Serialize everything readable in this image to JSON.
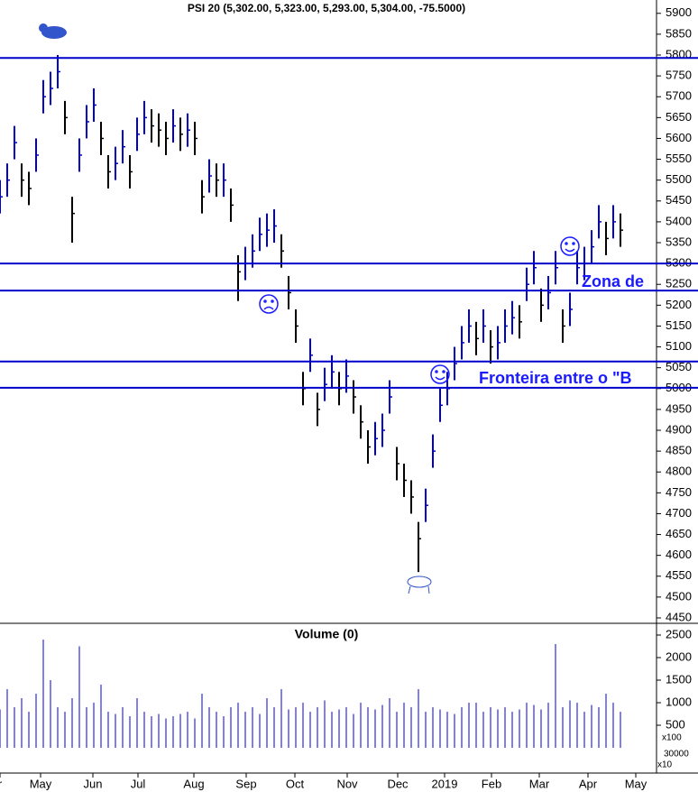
{
  "chart_data": {
    "type": "ohlc",
    "title": "PSI 20 (5,302.00, 5,323.00, 5,293.00, 5,304.00, -75.5000)",
    "volume_title": "Volume (0)",
    "volume_unit_label": "x100",
    "extra_labels": [
      "30000",
      "x10"
    ],
    "annotations": [
      "Zona de",
      "Fronteira entre o \"B"
    ],
    "up_color": "#0000cc",
    "down_color": "#000000",
    "line_color": "#0000cc",
    "hlines": [
      5793,
      5300,
      5235,
      5065,
      5002
    ],
    "xlim": [
      0,
      728
    ],
    "xticks": [
      {
        "value": 0,
        "label": "r"
      },
      {
        "value": 45,
        "label": "May"
      },
      {
        "value": 103,
        "label": "Jun"
      },
      {
        "value": 153,
        "label": "Jul"
      },
      {
        "value": 215,
        "label": "Aug"
      },
      {
        "value": 273,
        "label": "Sep"
      },
      {
        "value": 327,
        "label": "Oct"
      },
      {
        "value": 385,
        "label": "Nov"
      },
      {
        "value": 441,
        "label": "Dec"
      },
      {
        "value": 493,
        "label": "2019"
      },
      {
        "value": 545,
        "label": "Feb"
      },
      {
        "value": 598,
        "label": "Mar"
      },
      {
        "value": 652,
        "label": "Apr"
      },
      {
        "value": 705,
        "label": "May"
      }
    ],
    "ylim": [
      4437,
      5932
    ],
    "yticks": [
      4450,
      4500,
      4550,
      4600,
      4650,
      4700,
      4750,
      4800,
      4850,
      4900,
      4950,
      5000,
      5050,
      5100,
      5150,
      5200,
      5250,
      5300,
      5350,
      5400,
      5450,
      5500,
      5550,
      5600,
      5650,
      5700,
      5750,
      5800,
      5850,
      5900
    ],
    "vylim": [
      -520,
      2720
    ],
    "vyticks": [
      500,
      1000,
      1500,
      2000,
      2500
    ],
    "x": [
      0,
      8,
      16,
      24,
      32,
      40,
      48,
      56,
      64,
      72,
      80,
      88,
      96,
      104,
      112,
      120,
      128,
      136,
      144,
      152,
      160,
      168,
      176,
      184,
      192,
      200,
      208,
      216,
      224,
      232,
      240,
      248,
      256,
      264,
      272,
      280,
      288,
      296,
      304,
      312,
      320,
      328,
      336,
      344,
      352,
      360,
      368,
      376,
      384,
      392,
      400,
      408,
      416,
      424,
      432,
      440,
      448,
      456,
      464,
      472,
      480,
      488,
      496,
      504,
      512,
      520,
      528,
      536,
      544,
      552,
      560,
      568,
      576,
      584,
      592,
      600,
      608,
      616,
      624,
      632,
      640,
      648,
      656,
      664,
      672,
      680,
      688
    ],
    "values": [
      5460,
      5500,
      5590,
      5500,
      5480,
      5560,
      5700,
      5720,
      5760,
      5650,
      5420,
      5560,
      5640,
      5680,
      5600,
      5520,
      5540,
      5580,
      5520,
      5610,
      5650,
      5630,
      5620,
      5600,
      5630,
      5610,
      5620,
      5600,
      5460,
      5510,
      5500,
      5500,
      5440,
      5280,
      5300,
      5330,
      5370,
      5380,
      5390,
      5330,
      5230,
      5150,
      5000,
      5080,
      4950,
      5010,
      5040,
      5000,
      5030,
      4980,
      4920,
      4860,
      4880,
      4900,
      4980,
      4820,
      4780,
      4740,
      4640,
      4720,
      4850,
      4960,
      5000,
      5060,
      5110,
      5150,
      5120,
      5150,
      5100,
      5110,
      5150,
      5170,
      5160,
      5250,
      5290,
      5200,
      5230,
      5290,
      5150,
      5190,
      5290,
      5300,
      5340,
      5400,
      5360,
      5400,
      5380
    ],
    "high": [
      5500,
      5540,
      5630,
      5540,
      5520,
      5600,
      5740,
      5760,
      5800,
      5690,
      5460,
      5600,
      5680,
      5720,
      5640,
      5560,
      5580,
      5620,
      5560,
      5650,
      5690,
      5670,
      5660,
      5640,
      5670,
      5650,
      5660,
      5640,
      5500,
      5550,
      5540,
      5540,
      5480,
      5320,
      5340,
      5370,
      5410,
      5420,
      5430,
      5370,
      5270,
      5190,
      5040,
      5120,
      4990,
      5050,
      5080,
      5040,
      5070,
      5020,
      4960,
      4900,
      4920,
      4940,
      5020,
      4860,
      4820,
      4780,
      4680,
      4760,
      4890,
      5000,
      5040,
      5100,
      5150,
      5190,
      5160,
      5190,
      5140,
      5150,
      5190,
      5210,
      5200,
      5290,
      5330,
      5240,
      5270,
      5330,
      5190,
      5230,
      5330,
      5340,
      5380,
      5440,
      5400,
      5440,
      5420
    ],
    "low": [
      5420,
      5460,
      5550,
      5460,
      5440,
      5520,
      5660,
      5680,
      5720,
      5610,
      5350,
      5520,
      5600,
      5640,
      5560,
      5480,
      5500,
      5540,
      5480,
      5570,
      5610,
      5590,
      5580,
      5560,
      5590,
      5570,
      5580,
      5560,
      5420,
      5470,
      5460,
      5460,
      5400,
      5210,
      5260,
      5290,
      5330,
      5340,
      5350,
      5290,
      5190,
      5110,
      4960,
      5040,
      4910,
      4970,
      5000,
      4960,
      4990,
      4940,
      4880,
      4820,
      4840,
      4860,
      4940,
      4780,
      4740,
      4700,
      4560,
      4680,
      4810,
      4920,
      4960,
      5020,
      5070,
      5110,
      5080,
      5110,
      5060,
      5070,
      5110,
      5130,
      5120,
      5210,
      5250,
      5160,
      5190,
      5250,
      5110,
      5150,
      5250,
      5260,
      5300,
      5360,
      5320,
      5360,
      5340
    ],
    "volume": [
      850,
      1300,
      900,
      1100,
      800,
      1200,
      2400,
      1500,
      900,
      800,
      1100,
      2250,
      900,
      1000,
      1400,
      800,
      750,
      900,
      700,
      1100,
      800,
      700,
      750,
      650,
      700,
      750,
      800,
      650,
      1200,
      900,
      800,
      700,
      900,
      1000,
      800,
      900,
      750,
      1100,
      900,
      1300,
      850,
      900,
      1000,
      800,
      900,
      1050,
      800,
      850,
      900,
      750,
      1000,
      900,
      850,
      950,
      1100,
      800,
      1000,
      900,
      1300,
      800,
      900,
      850,
      800,
      750,
      900,
      1000,
      1000,
      800,
      900,
      850,
      900,
      800,
      850,
      1000,
      950,
      850,
      1000,
      2300,
      900,
      1050,
      1000,
      800,
      950,
      900,
      1200,
      1000,
      800
    ]
  }
}
